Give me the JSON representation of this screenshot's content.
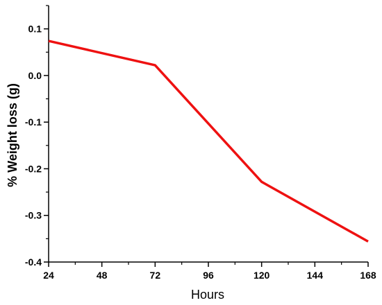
{
  "chart_data": {
    "type": "line",
    "title": "",
    "xlabel": "Hours",
    "ylabel": "% Weight loss (g)",
    "xlim": [
      24,
      168
    ],
    "ylim": [
      -0.4,
      0.15
    ],
    "x_ticks": [
      24,
      48,
      72,
      96,
      120,
      144,
      168
    ],
    "x_tick_labels": [
      "24",
      "48",
      "72",
      "96",
      "120",
      "144",
      "168"
    ],
    "y_ticks": [
      0.1,
      0.0,
      -0.1,
      -0.2,
      -0.3,
      -0.4
    ],
    "y_tick_labels": [
      "0.1",
      "0.0",
      "-0.1",
      "-0.2",
      "-0.3",
      "-0.4"
    ],
    "grid": false,
    "series": [
      {
        "color": "#ee1111",
        "x": [
          24,
          72,
          120,
          168
        ],
        "y": [
          0.074,
          0.022,
          -0.228,
          -0.356
        ]
      }
    ]
  }
}
